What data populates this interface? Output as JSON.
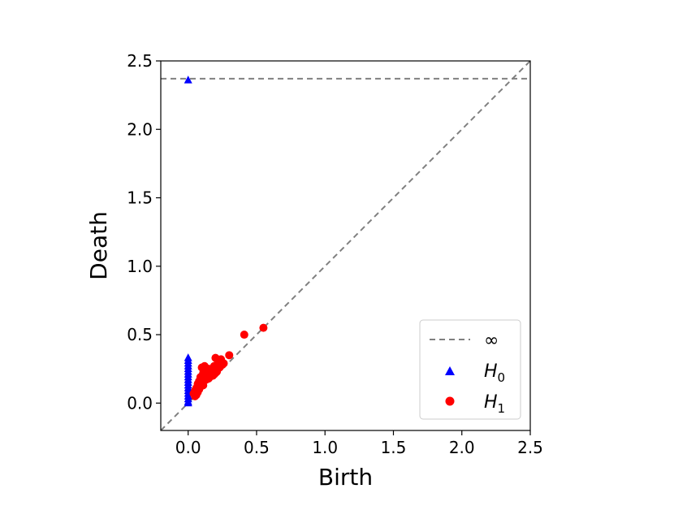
{
  "chart_data": {
    "type": "scatter",
    "title": "",
    "xlabel": "Birth",
    "ylabel": "Death",
    "xlim": [
      -0.2,
      2.5
    ],
    "ylim": [
      -0.2,
      2.5
    ],
    "xticks": [
      "0.0",
      "0.5",
      "1.0",
      "1.5",
      "2.0",
      "2.5"
    ],
    "yticks": [
      "0.0",
      "0.5",
      "1.0",
      "1.5",
      "2.0",
      "2.5"
    ],
    "grid": false,
    "legend_position": "bottom-right",
    "infinity_line": {
      "y": 2.37,
      "color": "#808080",
      "style": "dashed"
    },
    "diagonal": {
      "color": "#808080",
      "style": "dashed"
    },
    "legend": [
      {
        "label": "∞",
        "marker": "dashed-line",
        "color": "#808080"
      },
      {
        "label": "H",
        "sub": "0",
        "marker": "triangle",
        "color": "#0000ff"
      },
      {
        "label": "H",
        "sub": "1",
        "marker": "circle",
        "color": "#ff0000"
      }
    ],
    "series": [
      {
        "name": "H0",
        "marker": "triangle",
        "color": "#0000ff",
        "points": [
          [
            0.0,
            2.36
          ],
          [
            0.0,
            0.33
          ],
          [
            0.0,
            0.31
          ],
          [
            0.0,
            0.29
          ],
          [
            0.0,
            0.27
          ],
          [
            0.0,
            0.25
          ],
          [
            0.0,
            0.23
          ],
          [
            0.0,
            0.21
          ],
          [
            0.0,
            0.19
          ],
          [
            0.0,
            0.17
          ],
          [
            0.0,
            0.15
          ],
          [
            0.0,
            0.13
          ],
          [
            0.0,
            0.11
          ],
          [
            0.0,
            0.09
          ],
          [
            0.0,
            0.07
          ],
          [
            0.0,
            0.05
          ],
          [
            0.0,
            0.03
          ],
          [
            0.0,
            0.01
          ],
          [
            0.0,
            0.0
          ]
        ]
      },
      {
        "name": "H1",
        "marker": "circle",
        "color": "#ff0000",
        "points": [
          [
            0.55,
            0.55
          ],
          [
            0.41,
            0.5
          ],
          [
            0.3,
            0.35
          ],
          [
            0.2,
            0.33
          ],
          [
            0.24,
            0.32
          ],
          [
            0.26,
            0.29
          ],
          [
            0.22,
            0.3
          ],
          [
            0.19,
            0.27
          ],
          [
            0.12,
            0.27
          ],
          [
            0.1,
            0.26
          ],
          [
            0.15,
            0.25
          ],
          [
            0.18,
            0.24
          ],
          [
            0.13,
            0.23
          ],
          [
            0.11,
            0.22
          ],
          [
            0.16,
            0.21
          ],
          [
            0.2,
            0.25
          ],
          [
            0.22,
            0.27
          ],
          [
            0.25,
            0.28
          ],
          [
            0.14,
            0.2
          ],
          [
            0.09,
            0.19
          ],
          [
            0.12,
            0.18
          ],
          [
            0.17,
            0.22
          ],
          [
            0.08,
            0.16
          ],
          [
            0.1,
            0.15
          ],
          [
            0.13,
            0.17
          ],
          [
            0.07,
            0.14
          ],
          [
            0.09,
            0.12
          ],
          [
            0.11,
            0.13
          ],
          [
            0.06,
            0.11
          ],
          [
            0.08,
            0.1
          ],
          [
            0.05,
            0.09
          ],
          [
            0.07,
            0.08
          ],
          [
            0.04,
            0.07
          ],
          [
            0.06,
            0.06
          ],
          [
            0.05,
            0.05
          ],
          [
            0.15,
            0.18
          ],
          [
            0.18,
            0.2
          ],
          [
            0.21,
            0.23
          ],
          [
            0.23,
            0.26
          ],
          [
            0.16,
            0.24
          ],
          [
            0.12,
            0.21
          ],
          [
            0.1,
            0.18
          ],
          [
            0.14,
            0.22
          ],
          [
            0.19,
            0.21
          ],
          [
            0.2,
            0.22
          ]
        ]
      }
    ]
  }
}
